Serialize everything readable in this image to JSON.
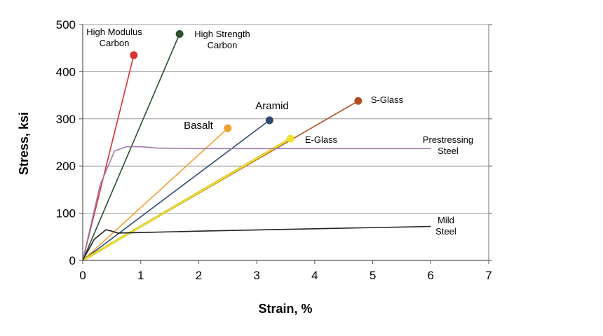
{
  "chart_data": {
    "type": "line",
    "xlabel": "Strain, %",
    "ylabel": "Stress, ksi",
    "xlim": [
      0,
      7
    ],
    "ylim": [
      0,
      500
    ],
    "x_ticks": [
      "0",
      "1",
      "2",
      "3",
      "4",
      "5",
      "6",
      "7"
    ],
    "y_ticks": [
      "0",
      "100",
      "200",
      "300",
      "400",
      "500"
    ],
    "grid": "horizontal",
    "series": [
      {
        "label": [
          "High Modulus",
          "Carbon"
        ],
        "color": "#d93030",
        "marker": true,
        "points": [
          [
            0,
            0
          ],
          [
            0.88,
            435
          ]
        ]
      },
      {
        "label": [
          "High Strength",
          "Carbon"
        ],
        "color": "#2d4f2d",
        "marker": true,
        "points": [
          [
            0,
            0
          ],
          [
            1.67,
            480
          ]
        ]
      },
      {
        "label": [
          "Basalt"
        ],
        "color": "#f0a030",
        "marker": true,
        "points": [
          [
            0,
            0
          ],
          [
            2.5,
            280
          ]
        ]
      },
      {
        "label": [
          "Aramid"
        ],
        "color": "#2e4a6e",
        "marker": true,
        "points": [
          [
            0,
            0
          ],
          [
            3.22,
            297
          ]
        ]
      },
      {
        "label": [
          "S-Glass"
        ],
        "color": "#b05020",
        "marker": true,
        "points": [
          [
            0,
            0
          ],
          [
            4.75,
            338
          ]
        ]
      },
      {
        "label": [
          "E-Glass"
        ],
        "color": "#f0e030",
        "marker": true,
        "points": [
          [
            0,
            0
          ],
          [
            3.58,
            258
          ]
        ]
      },
      {
        "label": [
          "Prestressing",
          "Steel"
        ],
        "color": "#a07ab0",
        "marker": false,
        "points": [
          [
            0,
            0
          ],
          [
            0.3,
            160
          ],
          [
            0.55,
            232
          ],
          [
            0.75,
            241
          ],
          [
            1.0,
            241
          ],
          [
            1.3,
            238
          ],
          [
            2.0,
            237
          ],
          [
            4.0,
            237
          ],
          [
            6.0,
            237
          ]
        ]
      },
      {
        "label": [
          "Mild",
          "Steel"
        ],
        "color": "#222222",
        "marker": false,
        "points": [
          [
            0,
            0
          ],
          [
            0.2,
            45
          ],
          [
            0.4,
            65
          ],
          [
            0.5,
            62
          ],
          [
            0.6,
            58
          ],
          [
            1.0,
            59
          ],
          [
            2.0,
            62
          ],
          [
            4.0,
            67
          ],
          [
            6.0,
            72
          ]
        ]
      }
    ]
  }
}
